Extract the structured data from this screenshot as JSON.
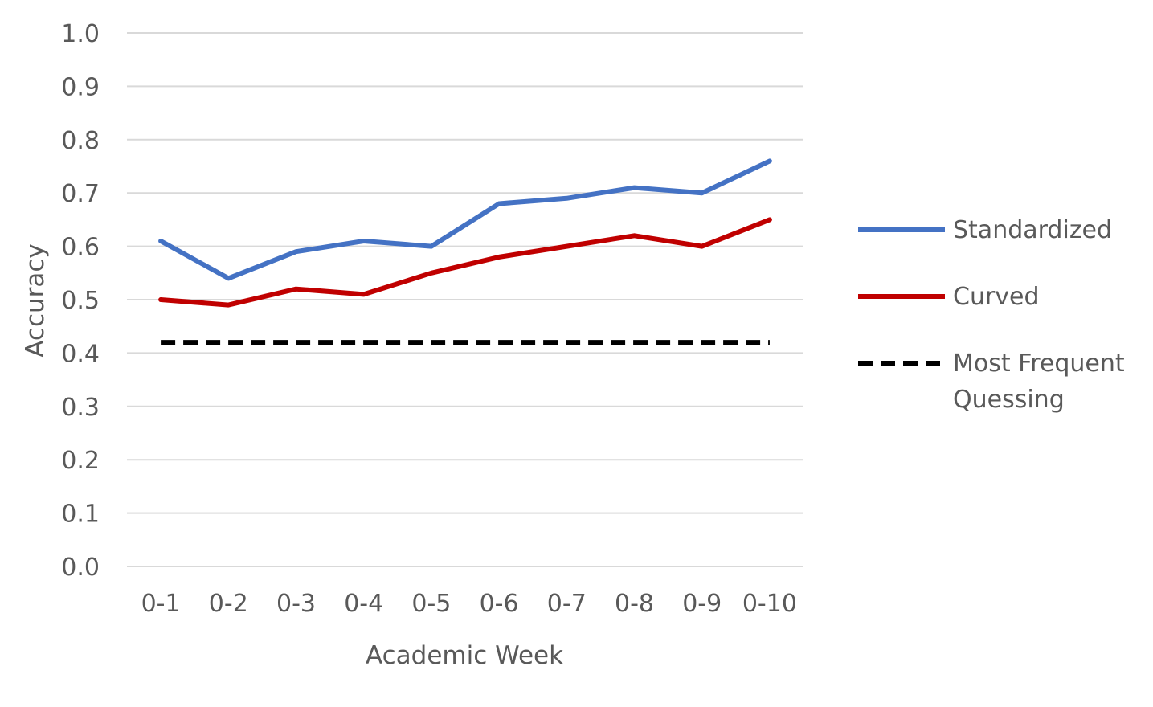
{
  "chart_data": {
    "type": "line",
    "title": "",
    "xlabel": "Academic Week",
    "ylabel": "Accuracy",
    "ylim": [
      0,
      1
    ],
    "yticks": [
      "0.0",
      "0.1",
      "0.2",
      "0.3",
      "0.4",
      "0.5",
      "0.6",
      "0.7",
      "0.8",
      "0.9",
      "1.0"
    ],
    "grid": "horizontal",
    "legend_position": "right",
    "categories": [
      "0-1",
      "0-2",
      "0-3",
      "0-4",
      "0-5",
      "0-6",
      "0-7",
      "0-8",
      "0-9",
      "0-10"
    ],
    "series": [
      {
        "name": "Standardized",
        "color": "#4472c4",
        "style": "solid",
        "values": [
          0.61,
          0.54,
          0.59,
          0.61,
          0.6,
          0.68,
          0.69,
          0.71,
          0.7,
          0.76
        ]
      },
      {
        "name": "Curved",
        "color": "#c00000",
        "style": "solid",
        "values": [
          0.5,
          0.49,
          0.52,
          0.51,
          0.55,
          0.58,
          0.6,
          0.62,
          0.6,
          0.65
        ]
      },
      {
        "name": "Most Frequent Quessing",
        "name_lines": [
          "Most Frequent",
          "Quessing"
        ],
        "color": "#000000",
        "style": "dashed",
        "values": [
          0.42,
          0.42,
          0.42,
          0.42,
          0.42,
          0.42,
          0.42,
          0.42,
          0.42,
          0.42
        ]
      }
    ]
  }
}
